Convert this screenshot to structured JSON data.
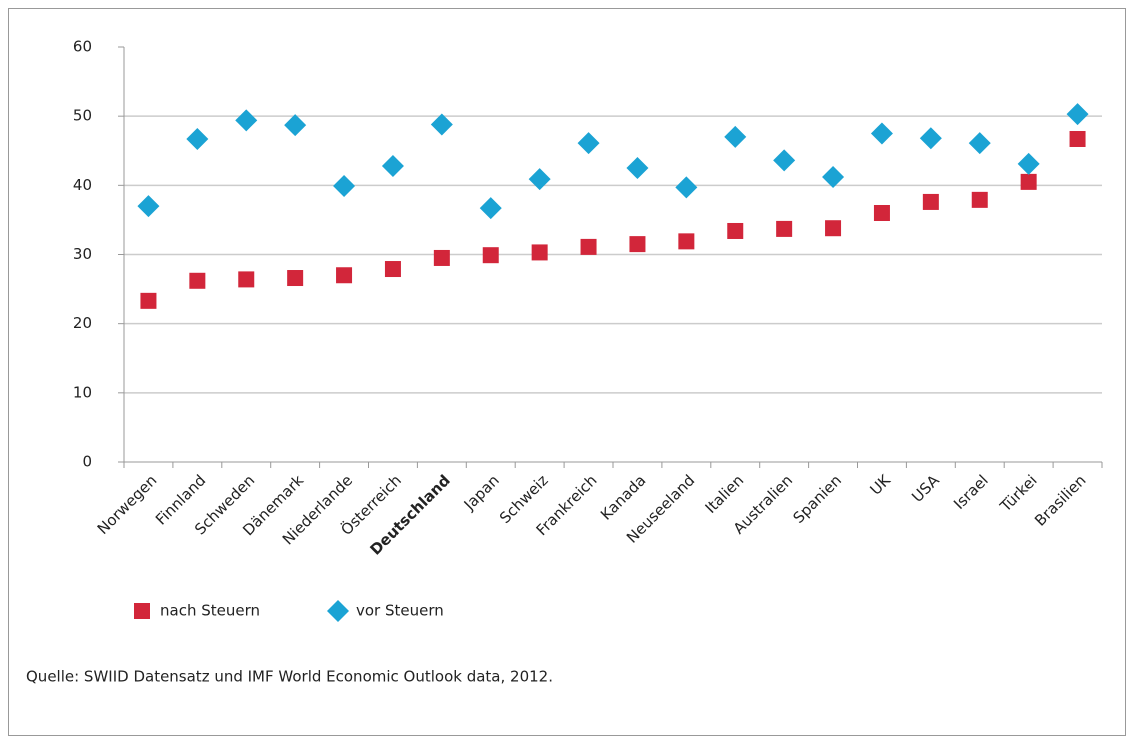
{
  "chart_data": {
    "type": "scatter",
    "categories": [
      "Norwegen",
      "Finnland",
      "Schweden",
      "Dänemark",
      "Niederlande",
      "Österreich",
      "Deutschland",
      "Japan",
      "Schweiz",
      "Frankreich",
      "Kanada",
      "Neuseeland",
      "Italien",
      "Australien",
      "Spanien",
      "UK",
      "USA",
      "Israel",
      "Türkei",
      "Brasilien"
    ],
    "highlight_index": 6,
    "series": [
      {
        "name": "nach Steuern",
        "color": "#d2263a",
        "marker": "square",
        "values": [
          23.3,
          26.2,
          26.4,
          26.6,
          27.0,
          27.9,
          29.5,
          29.9,
          30.3,
          31.1,
          31.5,
          31.9,
          33.4,
          33.7,
          33.8,
          36.0,
          37.6,
          37.9,
          40.5,
          46.7
        ]
      },
      {
        "name": "vor Steuern",
        "color": "#1ba3d4",
        "marker": "diamond",
        "values": [
          37.0,
          46.7,
          49.4,
          48.7,
          39.9,
          42.8,
          48.8,
          36.7,
          40.9,
          46.1,
          42.5,
          39.7,
          47.0,
          43.6,
          41.2,
          47.5,
          46.8,
          46.1,
          43.1,
          50.3
        ]
      }
    ],
    "ylim": [
      0,
      60
    ],
    "yticks": [
      0,
      10,
      20,
      30,
      40,
      50,
      60
    ],
    "grid": true,
    "source": "Quelle: SWIID Datensatz und IMF World Economic Outlook data, 2012."
  }
}
